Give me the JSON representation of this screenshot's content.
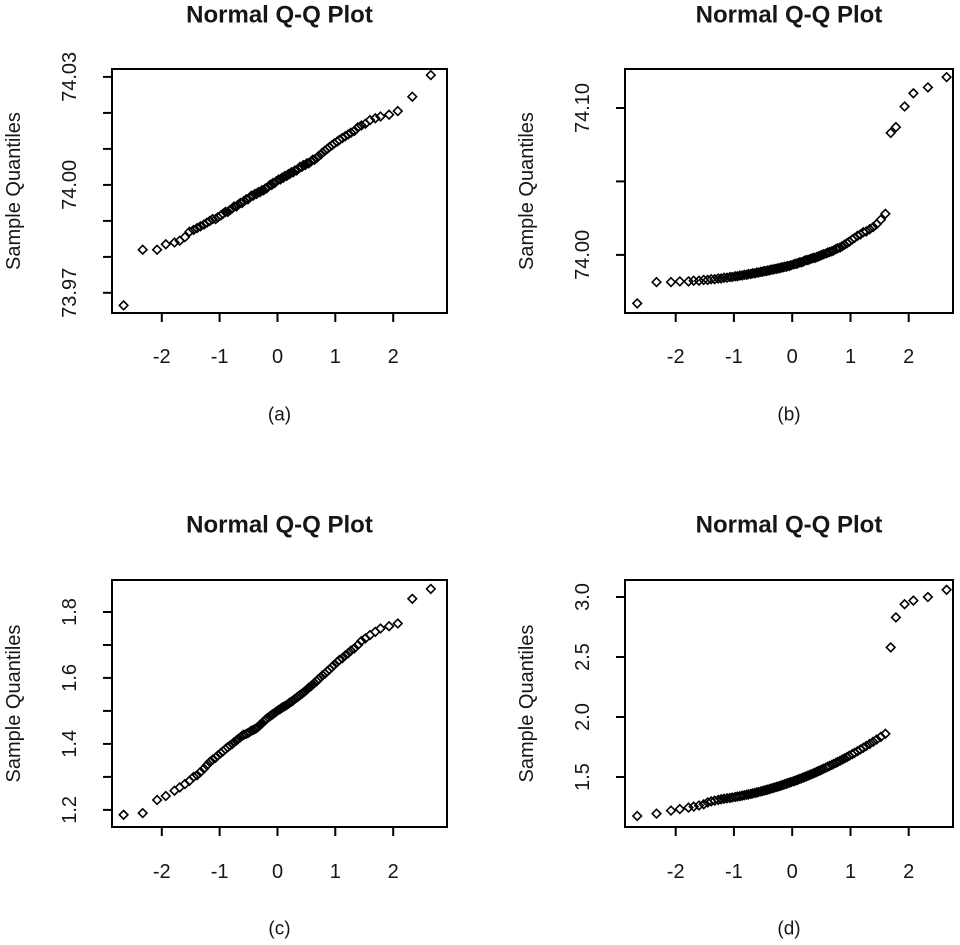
{
  "page": {
    "background": "#ffffff",
    "foreground": "#000000",
    "text_color": "#161616",
    "marker": "open-diamond"
  },
  "theoretical_quantiles": [
    -2.66,
    -2.33,
    -2.08,
    -1.93,
    -1.78,
    -1.69,
    -1.6,
    -1.52,
    -1.45,
    -1.39,
    -1.33,
    -1.27,
    -1.22,
    -1.17,
    -1.12,
    -1.07,
    -1.03,
    -0.98,
    -0.94,
    -0.9,
    -0.86,
    -0.82,
    -0.78,
    -0.75,
    -0.71,
    -0.68,
    -0.64,
    -0.61,
    -0.58,
    -0.54,
    -0.51,
    -0.48,
    -0.45,
    -0.42,
    -0.39,
    -0.36,
    -0.33,
    -0.3,
    -0.27,
    -0.24,
    -0.21,
    -0.19,
    -0.16,
    -0.13,
    -0.1,
    -0.08,
    -0.05,
    -0.02,
    0.02,
    0.05,
    0.08,
    0.1,
    0.13,
    0.16,
    0.19,
    0.21,
    0.24,
    0.27,
    0.3,
    0.33,
    0.36,
    0.39,
    0.42,
    0.45,
    0.48,
    0.51,
    0.54,
    0.58,
    0.61,
    0.64,
    0.68,
    0.71,
    0.75,
    0.78,
    0.82,
    0.86,
    0.9,
    0.94,
    0.98,
    1.03,
    1.07,
    1.12,
    1.17,
    1.22,
    1.27,
    1.33,
    1.39,
    1.45,
    1.52,
    1.6,
    1.69,
    1.78,
    1.93,
    2.08,
    2.33,
    2.65
  ],
  "chart_data": [
    {
      "id": "a",
      "type": "scatter",
      "title": "Normal Q-Q Plot",
      "xlabel": "",
      "ylabel": "Sample Quantiles",
      "caption": "(a)",
      "legend": "none",
      "grid": false,
      "xlim": [
        -2.86,
        2.93
      ],
      "ylim": [
        73.9644,
        74.0322
      ],
      "x_ticks": [
        -2,
        -1,
        0,
        1,
        2
      ],
      "x_tick_labels": [
        "-2",
        "-1",
        "0",
        "1",
        "2"
      ],
      "y_ticks": [
        73.97,
        73.98,
        73.99,
        74.0,
        74.01,
        74.02,
        74.03
      ],
      "y_tick_labels": [
        "73.97",
        "",
        "",
        "74.00",
        "",
        "",
        "74.03"
      ],
      "x": "shared",
      "y": [
        73.9665,
        73.982,
        73.982,
        73.9835,
        73.984,
        73.9845,
        73.9855,
        73.987,
        73.9875,
        73.988,
        73.9885,
        73.989,
        73.9895,
        73.99,
        73.9905,
        73.9905,
        73.991,
        73.9915,
        73.992,
        73.9925,
        73.9925,
        73.993,
        73.9935,
        73.994,
        73.994,
        73.9945,
        73.995,
        73.995,
        73.9955,
        73.996,
        73.996,
        73.9965,
        73.997,
        73.997,
        73.9975,
        73.9975,
        73.998,
        73.998,
        73.9985,
        73.9985,
        73.999,
        73.999,
        73.9995,
        74.0,
        74.0,
        74.0005,
        74.0005,
        74.001,
        74.0015,
        74.0015,
        74.002,
        74.002,
        74.0025,
        74.0025,
        74.003,
        74.003,
        74.0035,
        74.0035,
        74.004,
        74.004,
        74.0045,
        74.005,
        74.005,
        74.0055,
        74.0055,
        74.006,
        74.006,
        74.0065,
        74.007,
        74.007,
        74.0075,
        74.008,
        74.0085,
        74.009,
        74.0095,
        74.01,
        74.0105,
        74.011,
        74.0115,
        74.012,
        74.0125,
        74.013,
        74.0135,
        74.014,
        74.0145,
        74.015,
        74.016,
        74.0165,
        74.017,
        74.018,
        74.0185,
        74.019,
        74.0195,
        74.0205,
        74.0245,
        74.0305
      ]
    },
    {
      "id": "b",
      "type": "scatter",
      "title": "Normal Q-Q Plot",
      "xlabel": "",
      "ylabel": "Sample Quantiles",
      "caption": "(b)",
      "legend": "none",
      "grid": false,
      "xlim": [
        -2.87,
        2.76
      ],
      "ylim": [
        73.9605,
        74.1265
      ],
      "x_ticks": [
        -2,
        -1,
        0,
        1,
        2
      ],
      "x_tick_labels": [
        "-2",
        "-1",
        "0",
        "1",
        "2"
      ],
      "y_ticks": [
        74.0,
        74.05,
        74.1
      ],
      "y_tick_labels": [
        "74.00",
        "",
        "74.10"
      ],
      "x": "shared",
      "y": [
        73.967,
        73.9815,
        73.9815,
        73.982,
        73.982,
        73.9825,
        73.9825,
        73.983,
        73.983,
        73.9835,
        73.9835,
        73.984,
        73.984,
        73.9845,
        73.9845,
        73.985,
        73.985,
        73.9855,
        73.9855,
        73.986,
        73.986,
        73.9865,
        73.9865,
        73.987,
        73.987,
        73.9875,
        73.9875,
        73.988,
        73.988,
        73.9885,
        73.9885,
        73.989,
        73.989,
        73.9895,
        73.9895,
        73.99,
        73.99,
        73.9905,
        73.9905,
        73.991,
        73.991,
        73.9915,
        73.9915,
        73.992,
        73.992,
        73.9925,
        73.9925,
        73.993,
        73.9935,
        73.994,
        73.994,
        73.9945,
        73.995,
        73.995,
        73.9955,
        73.996,
        73.9965,
        73.9965,
        73.997,
        73.9975,
        73.998,
        73.998,
        73.9985,
        73.999,
        73.9995,
        74.0,
        74.0005,
        74.001,
        74.0015,
        74.002,
        74.0025,
        74.003,
        74.004,
        74.0045,
        74.005,
        74.006,
        74.007,
        74.008,
        74.009,
        74.0105,
        74.0115,
        74.013,
        74.014,
        74.0155,
        74.016,
        74.0175,
        74.019,
        74.021,
        74.024,
        74.028,
        74.083,
        74.087,
        74.101,
        74.11,
        74.114,
        74.121
      ]
    },
    {
      "id": "c",
      "type": "scatter",
      "title": "Normal Q-Q Plot",
      "xlabel": "",
      "ylabel": "Sample Quantiles",
      "caption": "(c)",
      "legend": "none",
      "grid": false,
      "xlim": [
        -2.86,
        2.93
      ],
      "ylim": [
        1.148,
        1.897
      ],
      "x_ticks": [
        -2,
        -1,
        0,
        1,
        2
      ],
      "x_tick_labels": [
        "-2",
        "-1",
        "0",
        "1",
        "2"
      ],
      "y_ticks": [
        1.2,
        1.3,
        1.4,
        1.5,
        1.6,
        1.7,
        1.8
      ],
      "y_tick_labels": [
        "1.2",
        "",
        "1.4",
        "",
        "1.6",
        "",
        "1.8"
      ],
      "x": "shared",
      "y": [
        1.185,
        1.19,
        1.23,
        1.242,
        1.258,
        1.268,
        1.278,
        1.288,
        1.3,
        1.305,
        1.315,
        1.325,
        1.335,
        1.345,
        1.352,
        1.358,
        1.365,
        1.372,
        1.378,
        1.384,
        1.39,
        1.395,
        1.4,
        1.405,
        1.41,
        1.415,
        1.42,
        1.425,
        1.428,
        1.43,
        1.433,
        1.436,
        1.44,
        1.442,
        1.445,
        1.448,
        1.452,
        1.458,
        1.462,
        1.468,
        1.472,
        1.476,
        1.48,
        1.484,
        1.488,
        1.49,
        1.494,
        1.498,
        1.503,
        1.506,
        1.51,
        1.512,
        1.515,
        1.518,
        1.522,
        1.525,
        1.528,
        1.532,
        1.536,
        1.54,
        1.544,
        1.548,
        1.552,
        1.556,
        1.56,
        1.565,
        1.57,
        1.575,
        1.58,
        1.585,
        1.59,
        1.597,
        1.603,
        1.608,
        1.613,
        1.62,
        1.626,
        1.633,
        1.64,
        1.648,
        1.654,
        1.66,
        1.668,
        1.675,
        1.683,
        1.69,
        1.7,
        1.712,
        1.72,
        1.73,
        1.74,
        1.75,
        1.757,
        1.765,
        1.84,
        1.87
      ]
    },
    {
      "id": "d",
      "type": "scatter",
      "title": "Normal Q-Q Plot",
      "xlabel": "",
      "ylabel": "Sample Quantiles",
      "caption": "(d)",
      "legend": "none",
      "grid": false,
      "xlim": [
        -2.87,
        2.76
      ],
      "ylim": [
        1.083,
        3.142
      ],
      "x_ticks": [
        -2,
        -1,
        0,
        1,
        2
      ],
      "x_tick_labels": [
        "-2",
        "-1",
        "0",
        "1",
        "2"
      ],
      "y_ticks": [
        1.5,
        2.0,
        2.5,
        3.0
      ],
      "y_tick_labels": [
        "1.5",
        "2.0",
        "2.5",
        "3.0"
      ],
      "x": "shared",
      "y": [
        1.175,
        1.195,
        1.22,
        1.232,
        1.245,
        1.253,
        1.262,
        1.272,
        1.288,
        1.296,
        1.303,
        1.309,
        1.314,
        1.318,
        1.322,
        1.325,
        1.329,
        1.333,
        1.336,
        1.34,
        1.344,
        1.348,
        1.352,
        1.355,
        1.359,
        1.363,
        1.367,
        1.371,
        1.374,
        1.379,
        1.383,
        1.387,
        1.391,
        1.395,
        1.399,
        1.404,
        1.408,
        1.412,
        1.417,
        1.421,
        1.426,
        1.429,
        1.434,
        1.439,
        1.444,
        1.447,
        1.452,
        1.457,
        1.464,
        1.469,
        1.474,
        1.478,
        1.484,
        1.489,
        1.495,
        1.499,
        1.505,
        1.511,
        1.517,
        1.523,
        1.529,
        1.536,
        1.542,
        1.549,
        1.555,
        1.562,
        1.569,
        1.578,
        1.585,
        1.592,
        1.601,
        1.608,
        1.618,
        1.625,
        1.635,
        1.646,
        1.656,
        1.666,
        1.677,
        1.69,
        1.701,
        1.715,
        1.729,
        1.743,
        1.758,
        1.776,
        1.794,
        1.812,
        1.834,
        1.86,
        2.58,
        2.83,
        2.94,
        2.97,
        3.0,
        3.06
      ]
    }
  ]
}
